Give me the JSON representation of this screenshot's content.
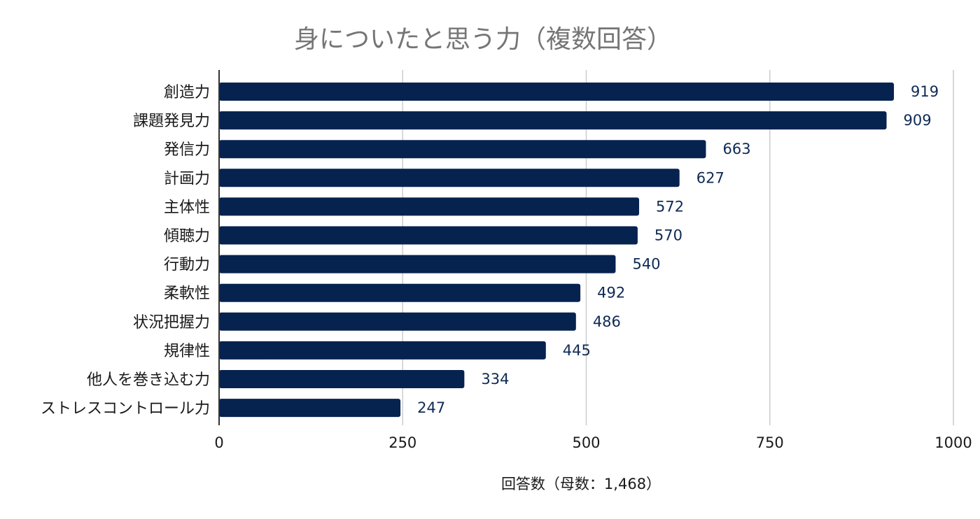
{
  "chart_data": {
    "type": "bar",
    "orientation": "horizontal",
    "title": "身についたと思う力（複数回答）",
    "xlabel": "回答数（母数：1,468）",
    "ylabel": "",
    "xlim": [
      0,
      1000
    ],
    "x_ticks": [
      0,
      250,
      500,
      750,
      1000
    ],
    "grid": true,
    "legend": "none",
    "bar_color": "#06224f",
    "label_color": "#0f2a55",
    "categories": [
      "創造力",
      "課題発見力",
      "発信力",
      "計画力",
      "主体性",
      "傾聴力",
      "行動力",
      "柔軟性",
      "状況把握力",
      "規律性",
      "他人を巻き込む力",
      "ストレスコントロール力"
    ],
    "values": [
      919,
      909,
      663,
      627,
      572,
      570,
      540,
      492,
      486,
      445,
      334,
      247
    ]
  }
}
